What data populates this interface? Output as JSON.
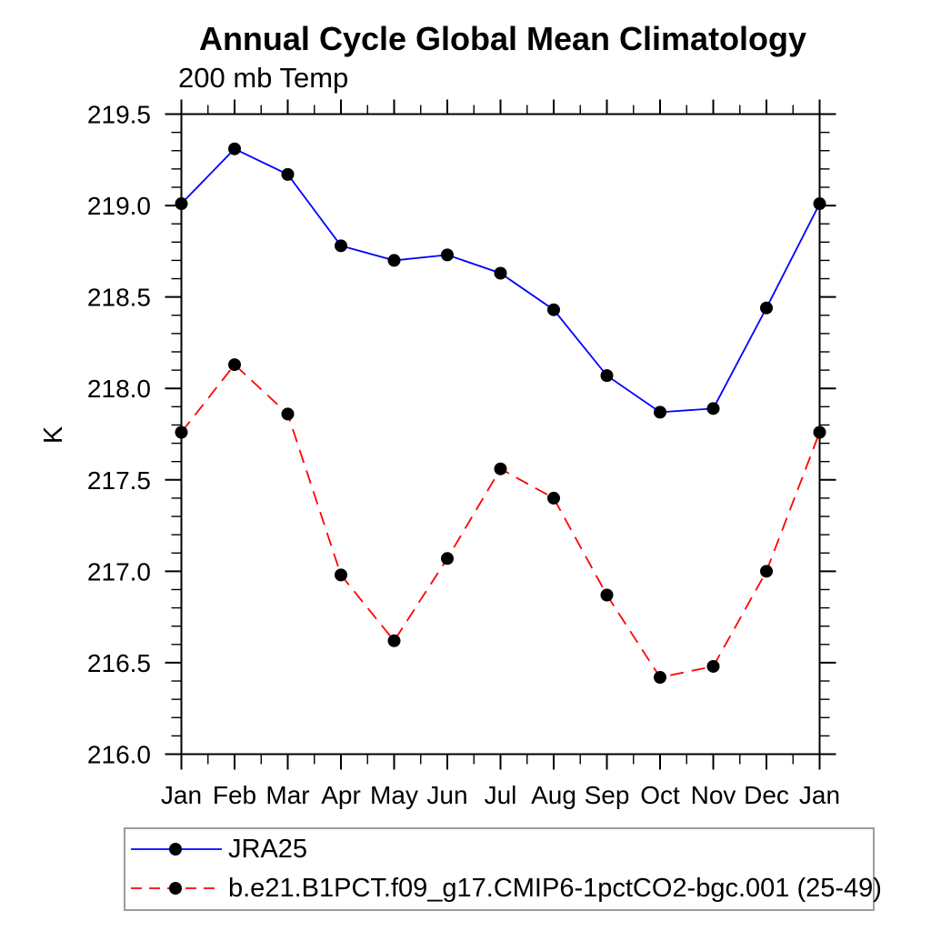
{
  "chart_data": {
    "type": "line",
    "title": "Annual Cycle Global Mean Climatology",
    "subtitle": "200 mb Temp",
    "xlabel": "",
    "ylabel": "K",
    "categories": [
      "Jan",
      "Feb",
      "Mar",
      "Apr",
      "May",
      "Jun",
      "Jul",
      "Aug",
      "Sep",
      "Oct",
      "Nov",
      "Dec",
      "Jan"
    ],
    "series": [
      {
        "name": "JRA25",
        "color": "#0000ff",
        "line_style": "solid",
        "marker": "filled-circle",
        "marker_color": "#000000",
        "values": [
          219.01,
          219.31,
          219.17,
          218.78,
          218.7,
          218.73,
          218.63,
          218.43,
          218.07,
          217.87,
          217.89,
          218.44,
          219.01
        ]
      },
      {
        "name": "b.e21.B1PCT.f09_g17.CMIP6-1pctCO2-bgc.001 (25-49)",
        "color": "#ff0000",
        "line_style": "dashed",
        "marker": "filled-circle",
        "marker_color": "#000000",
        "values": [
          217.76,
          218.13,
          217.86,
          216.98,
          216.62,
          217.07,
          217.56,
          217.4,
          216.87,
          216.42,
          216.48,
          217.0,
          217.76
        ]
      }
    ],
    "ylim": [
      216.0,
      219.5
    ],
    "yticks": [
      216.0,
      216.5,
      217.0,
      217.5,
      218.0,
      218.5,
      219.0,
      219.5
    ],
    "ytick_decimals": 1,
    "yminor_step": 0.1,
    "xminor_step": 0.5,
    "grid": false,
    "legend_position": "bottom-left",
    "axis_color": "#000000",
    "text_color": "#000000",
    "legend_border_color": "#9c9c9c",
    "background_color": "#ffffff"
  }
}
